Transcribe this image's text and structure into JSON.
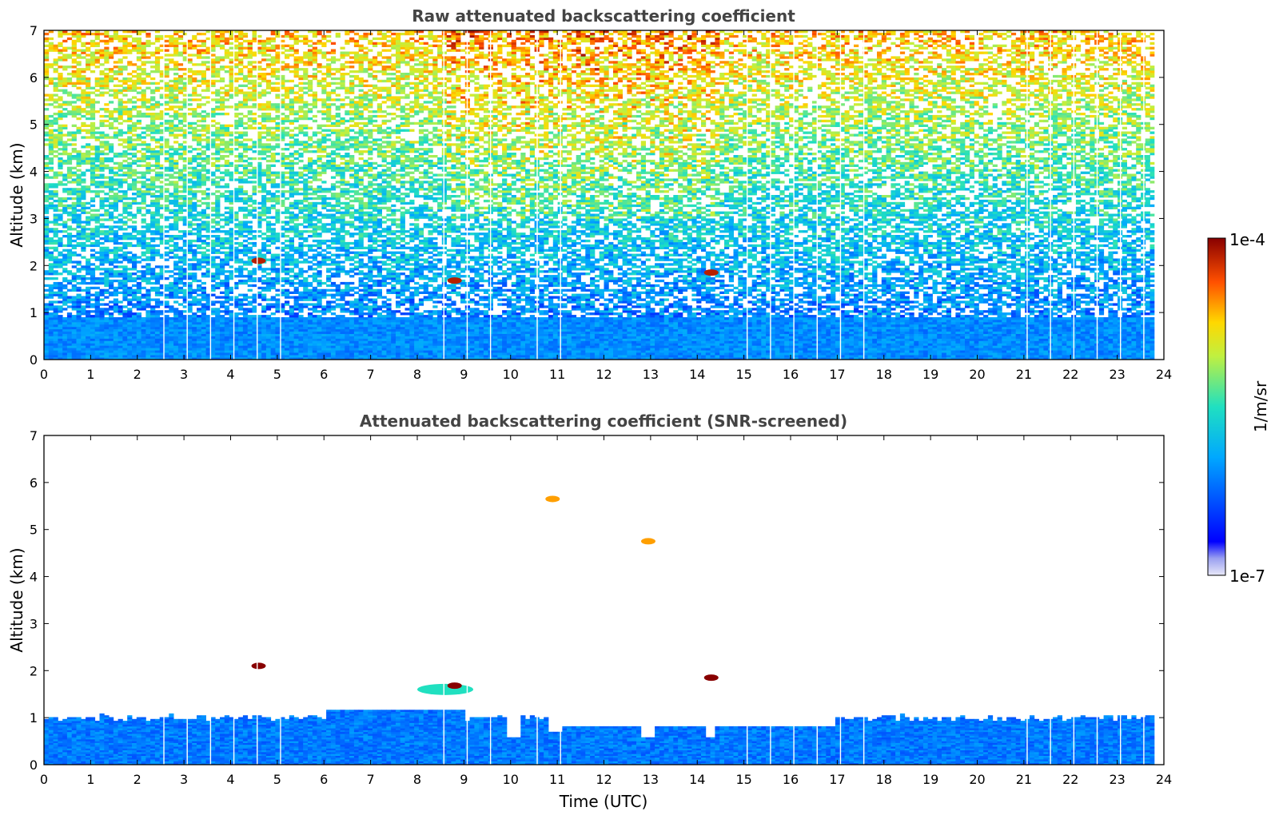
{
  "chart_data": [
    {
      "type": "heatmap",
      "title": "Raw attenuated backscattering coefficient",
      "xlabel": "",
      "ylabel": "Altitude (km)",
      "xlim": [
        0,
        24
      ],
      "ylim": [
        0,
        7
      ],
      "x_ticks": [
        "0",
        "1",
        "2",
        "3",
        "4",
        "5",
        "6",
        "7",
        "8",
        "9",
        "10",
        "11",
        "12",
        "13",
        "14",
        "15",
        "16",
        "17",
        "18",
        "19",
        "20",
        "21",
        "22",
        "23",
        "24"
      ],
      "y_ticks": [
        "0",
        "1",
        "2",
        "3",
        "4",
        "5",
        "6",
        "7"
      ],
      "data_end_time": 23.8,
      "gaps_utc": [
        2.57,
        3.07,
        3.57,
        4.07,
        4.57,
        5.07,
        8.57,
        9.07,
        9.57,
        10.57,
        11.07,
        15.07,
        15.57,
        16.07,
        16.57,
        17.07,
        17.57,
        21.07,
        21.57,
        22.07,
        22.57,
        23.07,
        23.57
      ],
      "features": [
        {
          "name": "boundary-layer",
          "t_start": 0,
          "t_end": 23.8,
          "alt_top_km": 0.9,
          "level": 0.3
        },
        {
          "name": "cloud",
          "time": 4.6,
          "alt_km": 2.1,
          "level": 0.95
        },
        {
          "name": "cloud",
          "time": 8.8,
          "alt_km": 1.68,
          "level": 0.95
        },
        {
          "name": "cloud",
          "time": 14.3,
          "alt_km": 1.85,
          "level": 0.95
        }
      ]
    },
    {
      "type": "heatmap",
      "title": "Attenuated backscattering coefficient (SNR-screened)",
      "xlabel": "Time (UTC)",
      "ylabel": "Altitude (km)",
      "xlim": [
        0,
        24
      ],
      "ylim": [
        0,
        7
      ],
      "x_ticks": [
        "0",
        "1",
        "2",
        "3",
        "4",
        "5",
        "6",
        "7",
        "8",
        "9",
        "10",
        "11",
        "12",
        "13",
        "14",
        "15",
        "16",
        "17",
        "18",
        "19",
        "20",
        "21",
        "22",
        "23",
        "24"
      ],
      "y_ticks": [
        "0",
        "1",
        "2",
        "3",
        "4",
        "5",
        "6",
        "7"
      ],
      "data_end_time": 23.8,
      "features": [
        {
          "name": "boundary-layer",
          "t_start": 0,
          "t_end": 23.8,
          "alt_top_km": 1.0,
          "level": 0.3
        },
        {
          "name": "aerosol-patch",
          "time": 8.6,
          "alt_km": 1.6,
          "level": 0.5
        },
        {
          "name": "cloud",
          "time": 4.6,
          "alt_km": 2.1,
          "level": 1.0
        },
        {
          "name": "cloud",
          "time": 8.8,
          "alt_km": 1.68,
          "level": 1.0
        },
        {
          "name": "cloud",
          "time": 14.3,
          "alt_km": 1.85,
          "level": 1.0
        },
        {
          "name": "cloud",
          "time": 10.9,
          "alt_km": 5.65,
          "level": 0.8
        },
        {
          "name": "cloud",
          "time": 12.95,
          "alt_km": 4.75,
          "level": 0.8
        }
      ]
    }
  ],
  "colorbar": {
    "label": "1/m/sr",
    "max_label": "1e-4",
    "min_label": "1e-7",
    "scale": "log",
    "colormap": "jet"
  }
}
